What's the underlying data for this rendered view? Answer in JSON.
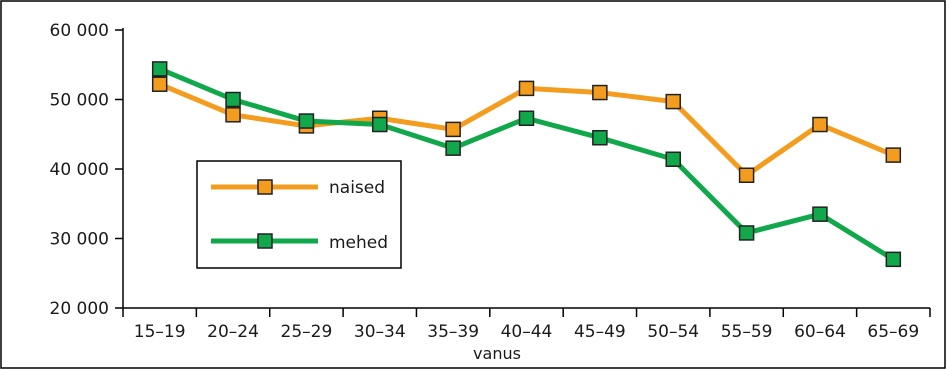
{
  "chart_data": {
    "type": "line",
    "title": "",
    "xlabel": "vanus",
    "ylabel": "",
    "categories": [
      "15–19",
      "20–24",
      "25–29",
      "30–34",
      "35–39",
      "40–44",
      "45–49",
      "50–54",
      "55–59",
      "60–64",
      "65–69"
    ],
    "ylim": [
      20000,
      60000
    ],
    "yticks": [
      20000,
      30000,
      40000,
      50000,
      60000
    ],
    "ytick_labels": [
      "20 000",
      "30 000",
      "40 000",
      "50 000",
      "60 000"
    ],
    "grid": false,
    "legend_position": "middle-left",
    "series": [
      {
        "name": "naised",
        "color": "#f39c1e",
        "values": [
          52200,
          47800,
          46200,
          47300,
          45700,
          51600,
          51000,
          49700,
          39100,
          46400,
          42000
        ]
      },
      {
        "name": "mehed",
        "color": "#10a84a",
        "values": [
          54400,
          50000,
          46900,
          46400,
          43000,
          47300,
          44500,
          41400,
          30800,
          33500,
          27000
        ]
      }
    ]
  }
}
